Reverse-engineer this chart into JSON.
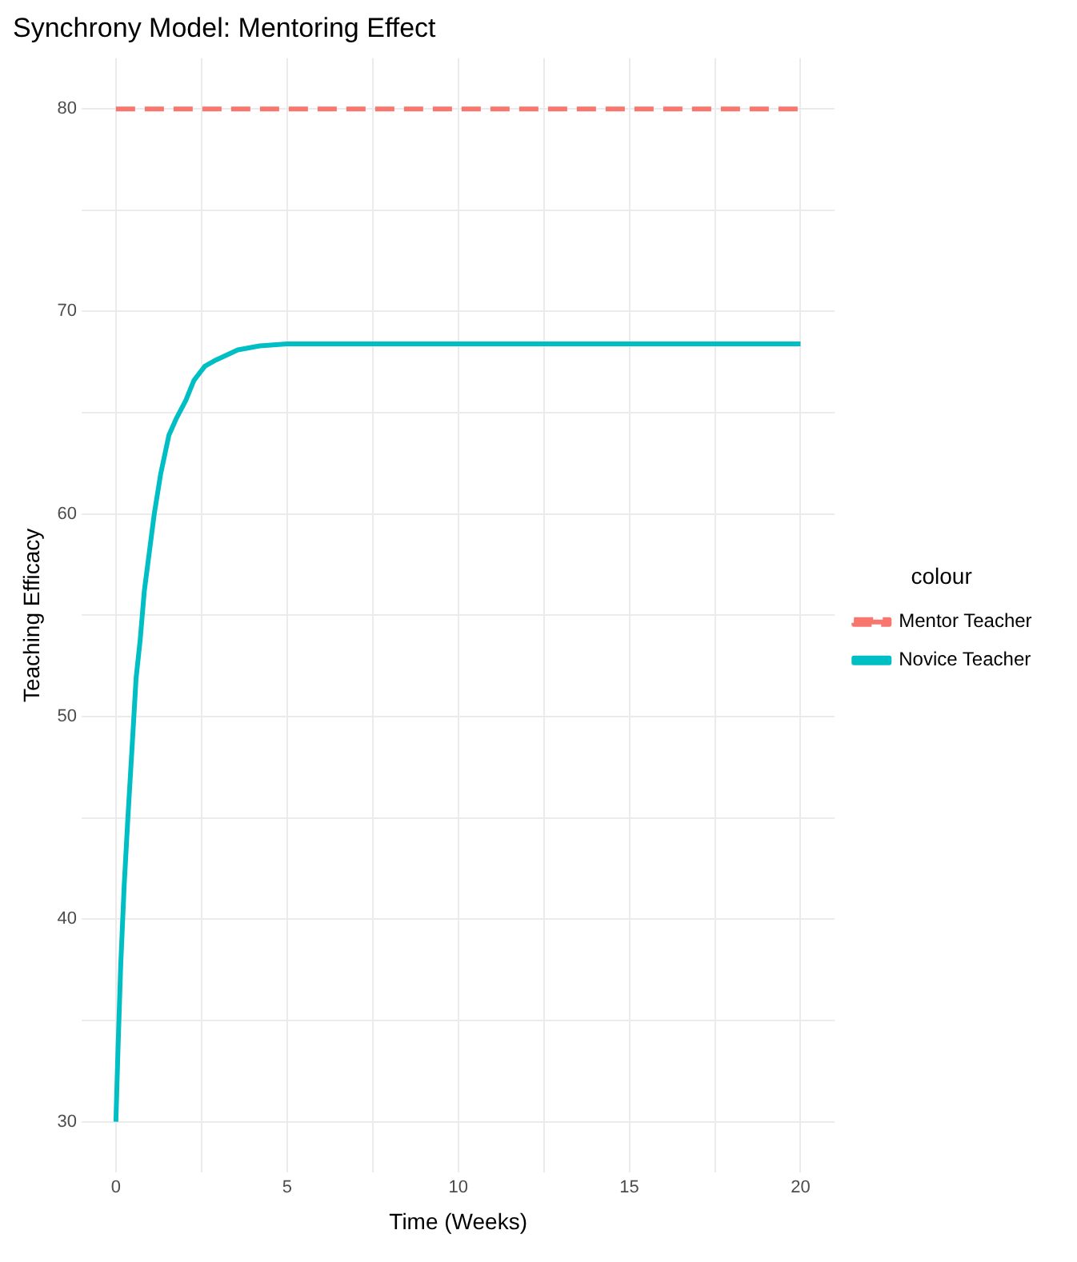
{
  "chart_data": {
    "type": "line",
    "title": "Synchrony Model: Mentoring Effect",
    "xlabel": "Time (Weeks)",
    "ylabel": "Teaching Efficacy",
    "legend_title": "colour",
    "legend": "right",
    "grid": true,
    "marker": "none",
    "xlim": [
      -1,
      21
    ],
    "xticks": [
      0,
      {
        "value": 2.5,
        "label": null
      },
      5,
      {
        "value": 7.5,
        "label": null
      },
      10,
      {
        "value": 12.5,
        "label": null
      },
      15,
      {
        "value": 17.5,
        "label": null
      },
      20
    ],
    "ylim": [
      27.5,
      82.5
    ],
    "yticks": [
      30,
      {
        "value": 35,
        "label": null
      },
      40,
      {
        "value": 45,
        "label": null
      },
      50,
      {
        "value": 55,
        "label": null
      },
      60,
      {
        "value": 65,
        "label": null
      },
      70,
      {
        "value": 75,
        "label": null
      },
      80
    ],
    "series": [
      {
        "name": "Mentor Teacher",
        "color": "#f8766d",
        "line_style": "dashed",
        "x": [
          0,
          20
        ],
        "values": [
          80,
          80
        ]
      },
      {
        "name": "Novice Teacher",
        "color": "#00bfc4",
        "line_style": "solid",
        "x": [
          0,
          0.06,
          0.14,
          0.24,
          0.35,
          0.48,
          0.59,
          0.71,
          0.83,
          0.99,
          1.12,
          1.31,
          1.55,
          1.76,
          2.04,
          2.28,
          2.6,
          2.92,
          3.56,
          4.2,
          5,
          20
        ],
        "values": [
          30,
          33.5,
          37.7,
          41.6,
          45,
          48.7,
          51.9,
          53.8,
          56.2,
          58.3,
          60,
          62,
          63.9,
          64.7,
          65.6,
          66.6,
          67.3,
          67.6,
          68.1,
          68.3,
          68.4,
          68.4
        ]
      }
    ]
  }
}
